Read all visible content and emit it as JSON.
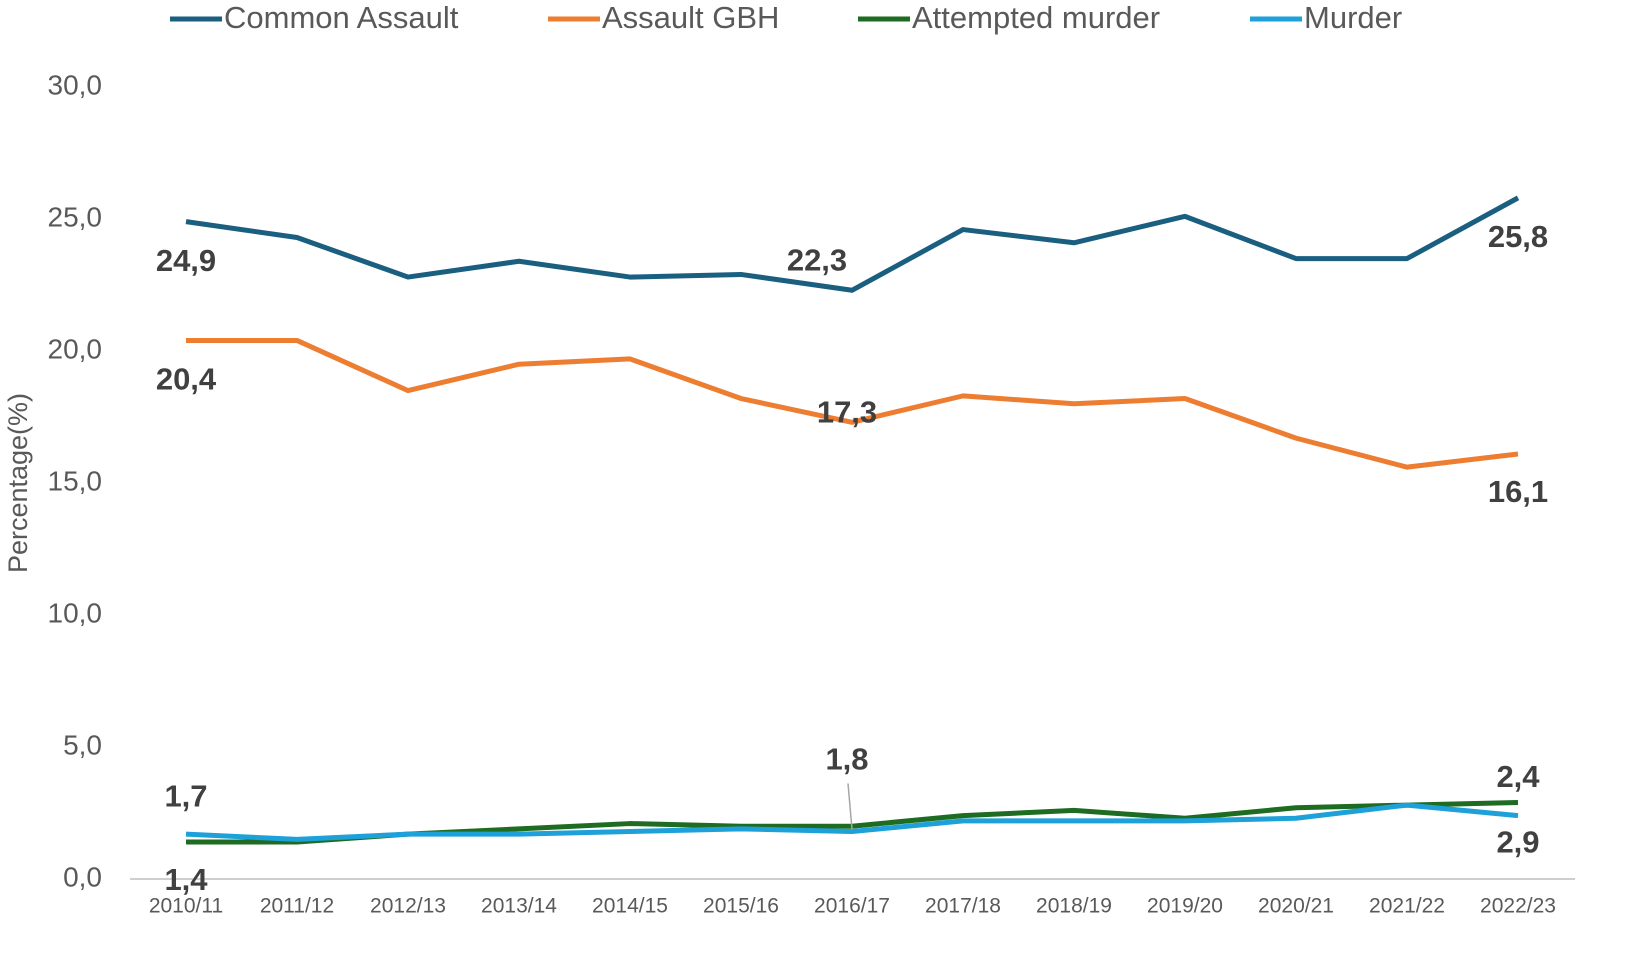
{
  "chart_data": {
    "type": "line",
    "y_label": "Percentage(%)",
    "categories": [
      "2010/11",
      "2011/12",
      "2012/13",
      "2013/14",
      "2014/15",
      "2015/16",
      "2016/17",
      "2017/18",
      "2018/19",
      "2019/20",
      "2020/21",
      "2021/22",
      "2022/23"
    ],
    "series": [
      {
        "name": "Common Assault",
        "color": "#1a5e80",
        "values": [
          24.9,
          24.3,
          22.8,
          23.4,
          22.8,
          22.9,
          22.3,
          24.6,
          24.1,
          25.1,
          23.5,
          23.5,
          25.8
        ],
        "value_labels": [
          "24,9",
          null,
          null,
          null,
          null,
          null,
          "22,3",
          null,
          null,
          null,
          null,
          null,
          "25,8"
        ]
      },
      {
        "name": "Assault GBH",
        "color": "#ed7d31",
        "values": [
          20.4,
          20.4,
          18.5,
          19.5,
          19.7,
          18.2,
          17.3,
          18.3,
          18.0,
          18.2,
          16.7,
          15.6,
          16.1
        ],
        "value_labels": [
          "20,4",
          null,
          null,
          null,
          null,
          null,
          "17,3",
          null,
          null,
          null,
          null,
          null,
          "16,1"
        ]
      },
      {
        "name": "Attempted murder",
        "color": "#1e6b22",
        "values": [
          1.4,
          1.4,
          1.7,
          1.9,
          2.1,
          2.0,
          2.0,
          2.4,
          2.6,
          2.3,
          2.7,
          2.8,
          2.9
        ],
        "value_labels": [
          "1,4",
          null,
          null,
          null,
          null,
          null,
          null,
          null,
          null,
          null,
          null,
          null,
          "2,9"
        ]
      },
      {
        "name": "Murder",
        "color": "#1ea0d8",
        "values": [
          1.7,
          1.5,
          1.7,
          1.7,
          1.8,
          1.9,
          1.8,
          2.2,
          2.2,
          2.2,
          2.3,
          2.8,
          2.4
        ],
        "value_labels": [
          "1,7",
          null,
          null,
          null,
          null,
          null,
          "1,8",
          null,
          null,
          null,
          null,
          null,
          "2,4"
        ]
      }
    ],
    "ylim": [
      0,
      30
    ],
    "yticks": [
      {
        "value": 0,
        "label": "0,0"
      },
      {
        "value": 5,
        "label": "5,0"
      },
      {
        "value": 10,
        "label": "10,0"
      },
      {
        "value": 15,
        "label": "15,0"
      },
      {
        "value": 20,
        "label": "20,0"
      },
      {
        "value": 25,
        "label": "25,0"
      },
      {
        "value": 30,
        "label": "30,0"
      }
    ],
    "legend": "top",
    "grid": false
  }
}
